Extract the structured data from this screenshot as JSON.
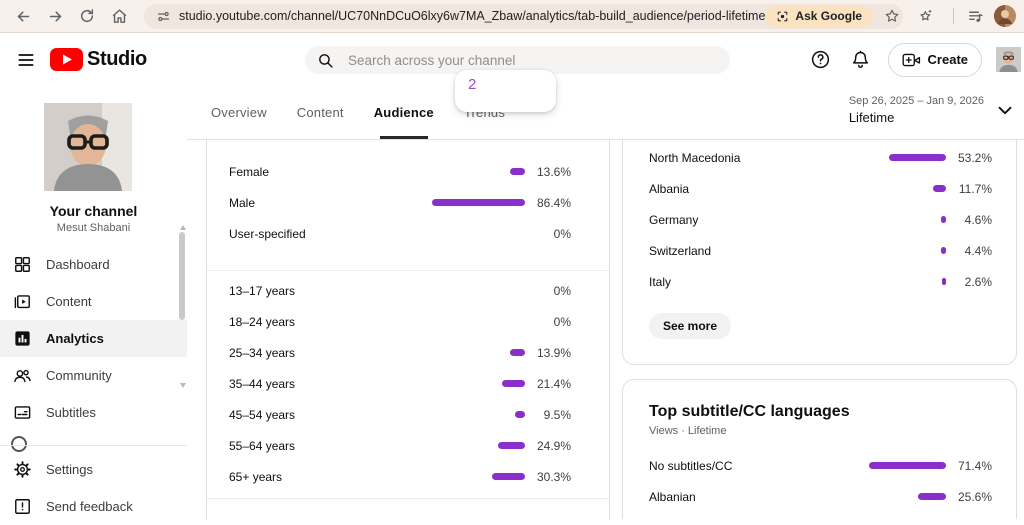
{
  "browser": {
    "url": "studio.youtube.com/channel/UC70NnDCuO6lxy6w7MA_Zbaw/analytics/tab-build_audience/period-lifetime",
    "ask_google": "Ask Google"
  },
  "header": {
    "brand": "Studio",
    "search_placeholder": "Search across your channel",
    "create_label": "Create"
  },
  "sidebar": {
    "channel_title": "Your channel",
    "channel_name": "Mesut Shabani",
    "items": [
      {
        "label": "Dashboard",
        "icon": "dashboard-icon",
        "selected": false
      },
      {
        "label": "Content",
        "icon": "content-icon",
        "selected": false
      },
      {
        "label": "Analytics",
        "icon": "analytics-icon",
        "selected": true
      },
      {
        "label": "Community",
        "icon": "community-icon",
        "selected": false
      },
      {
        "label": "Subtitles",
        "icon": "subtitles-icon",
        "selected": false
      }
    ],
    "footer_items": [
      {
        "label": "Settings",
        "icon": "gear-icon"
      },
      {
        "label": "Send feedback",
        "icon": "feedback-icon"
      }
    ]
  },
  "tabs": {
    "items": [
      "Overview",
      "Content",
      "Audience",
      "Trends"
    ],
    "selected": "Audience"
  },
  "date_filter": {
    "range": "Sep 26, 2025 – Jan 9, 2026",
    "period": "Lifetime"
  },
  "tooltip": {
    "value": "2"
  },
  "colors": {
    "bar_purple": "#8a2fc9",
    "tooltip_purple": "#9a4fd0"
  },
  "chart_data": [
    {
      "type": "bar",
      "orientation": "horizontal",
      "group": "gender",
      "unit": "%",
      "categories": [
        "Female",
        "Male",
        "User-specified"
      ],
      "values": [
        13.6,
        86.4,
        0
      ],
      "labels": [
        "13.6%",
        "86.4%",
        "0%"
      ]
    },
    {
      "type": "bar",
      "orientation": "horizontal",
      "group": "age",
      "unit": "%",
      "categories": [
        "13–17 years",
        "18–24 years",
        "25–34 years",
        "35–44 years",
        "45–54 years",
        "55–64 years",
        "65+ years"
      ],
      "values": [
        0,
        0,
        13.9,
        21.4,
        9.5,
        24.9,
        30.3
      ],
      "labels": [
        "0%",
        "0%",
        "13.9%",
        "21.4%",
        "9.5%",
        "24.9%",
        "30.3%"
      ]
    },
    {
      "type": "bar",
      "orientation": "horizontal",
      "group": "geography",
      "unit": "%",
      "categories": [
        "North Macedonia",
        "Albania",
        "Germany",
        "Switzerland",
        "Italy"
      ],
      "values": [
        53.2,
        11.7,
        4.6,
        4.4,
        2.6
      ],
      "labels": [
        "53.2%",
        "11.7%",
        "4.6%",
        "4.4%",
        "2.6%"
      ],
      "see_more": "See more"
    },
    {
      "type": "bar",
      "orientation": "horizontal",
      "group": "subtitles",
      "unit": "%",
      "title": "Top subtitle/CC languages",
      "subtitle": "Views · Lifetime",
      "categories": [
        "No subtitles/CC",
        "Albanian"
      ],
      "values": [
        71.4,
        25.6
      ],
      "labels": [
        "71.4%",
        "25.6%"
      ]
    }
  ]
}
